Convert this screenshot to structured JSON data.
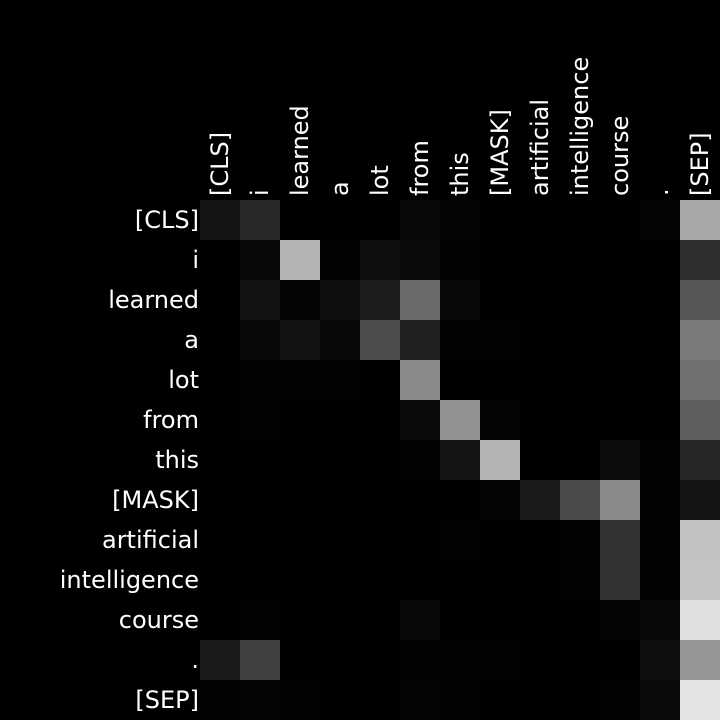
{
  "chart_data": {
    "type": "heatmap",
    "title": "",
    "xlabel": "",
    "ylabel": "",
    "x_labels": [
      "[CLS]",
      "i",
      "learned",
      "a",
      "lot",
      "from",
      "this",
      "[MASK]",
      "artificial",
      "intelligence",
      "course",
      ".",
      "[SEP]"
    ],
    "y_labels": [
      "[CLS]",
      "i",
      "learned",
      "a",
      "lot",
      "from",
      "this",
      "[MASK]",
      "artificial",
      "intelligence",
      "course",
      ".",
      "[SEP]"
    ],
    "value_range": [
      0,
      1
    ],
    "colormap": "grayscale (black = 0, white = 1)",
    "values": [
      [
        0.08,
        0.16,
        0.0,
        0.0,
        0.0,
        0.03,
        0.02,
        0.0,
        0.0,
        0.0,
        0.0,
        0.02,
        0.66
      ],
      [
        0.0,
        0.03,
        0.7,
        0.01,
        0.06,
        0.04,
        0.01,
        0.0,
        0.0,
        0.0,
        0.0,
        0.0,
        0.18
      ],
      [
        0.0,
        0.07,
        0.02,
        0.06,
        0.11,
        0.42,
        0.03,
        0.0,
        0.0,
        0.0,
        0.0,
        0.0,
        0.34
      ],
      [
        0.0,
        0.03,
        0.07,
        0.03,
        0.3,
        0.13,
        0.01,
        0.01,
        0.0,
        0.0,
        0.0,
        0.0,
        0.48
      ],
      [
        0.0,
        0.01,
        0.01,
        0.01,
        0.0,
        0.54,
        0.0,
        0.0,
        0.0,
        0.0,
        0.0,
        0.0,
        0.44
      ],
      [
        0.0,
        0.01,
        0.0,
        0.0,
        0.0,
        0.04,
        0.57,
        0.02,
        0.0,
        0.0,
        0.0,
        0.0,
        0.37
      ],
      [
        0.0,
        0.0,
        0.0,
        0.0,
        0.0,
        0.01,
        0.08,
        0.7,
        0.0,
        0.0,
        0.05,
        0.01,
        0.15
      ],
      [
        0.0,
        0.0,
        0.0,
        0.0,
        0.0,
        0.0,
        0.0,
        0.02,
        0.1,
        0.29,
        0.54,
        0.01,
        0.08
      ],
      [
        0.0,
        0.0,
        0.0,
        0.0,
        0.0,
        0.0,
        0.01,
        0.0,
        0.0,
        0.01,
        0.2,
        0.01,
        0.76
      ],
      [
        0.0,
        0.0,
        0.0,
        0.0,
        0.0,
        0.0,
        0.0,
        0.0,
        0.0,
        0.01,
        0.2,
        0.01,
        0.77
      ],
      [
        0.0,
        0.01,
        0.0,
        0.0,
        0.0,
        0.03,
        0.0,
        0.0,
        0.0,
        0.0,
        0.02,
        0.03,
        0.88
      ],
      [
        0.1,
        0.25,
        0.0,
        0.0,
        0.0,
        0.01,
        0.01,
        0.01,
        0.0,
        0.0,
        0.0,
        0.06,
        0.59
      ],
      [
        0.01,
        0.02,
        0.01,
        0.0,
        0.0,
        0.02,
        0.01,
        0.0,
        0.0,
        0.0,
        0.01,
        0.04,
        0.89
      ]
    ]
  }
}
